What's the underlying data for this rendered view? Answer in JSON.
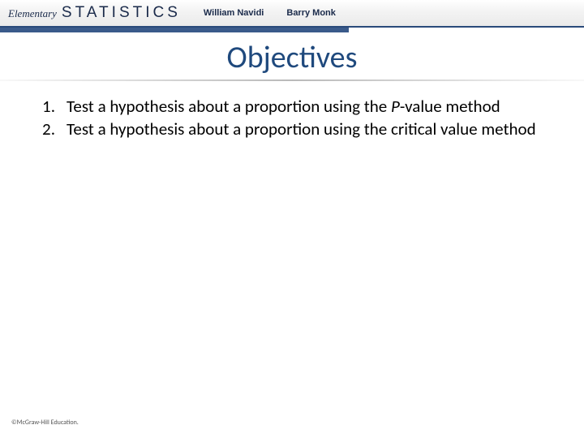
{
  "header": {
    "elementary": "Elementary",
    "statistics": "STATISTICS",
    "author1": "William Navidi",
    "author2": "Barry Monk",
    "bar_color": "#3a5a8a",
    "text_color": "#1a2a4a"
  },
  "title": {
    "text": "Objectives",
    "color": "#1f497d",
    "fontsize": 38
  },
  "objectives": [
    {
      "num": "1.",
      "text_pre": "Test a hypothesis about a proportion using the ",
      "pval": "P",
      "text_post": "-value method"
    },
    {
      "num": "2.",
      "text_pre": "Test a hypothesis about a proportion using the critical value method",
      "pval": "",
      "text_post": ""
    }
  ],
  "footer": {
    "copyright": "©McGraw-Hill Education."
  },
  "colors": {
    "background": "#ffffff",
    "body_text": "#000000",
    "underline": "#a0a0a0"
  }
}
